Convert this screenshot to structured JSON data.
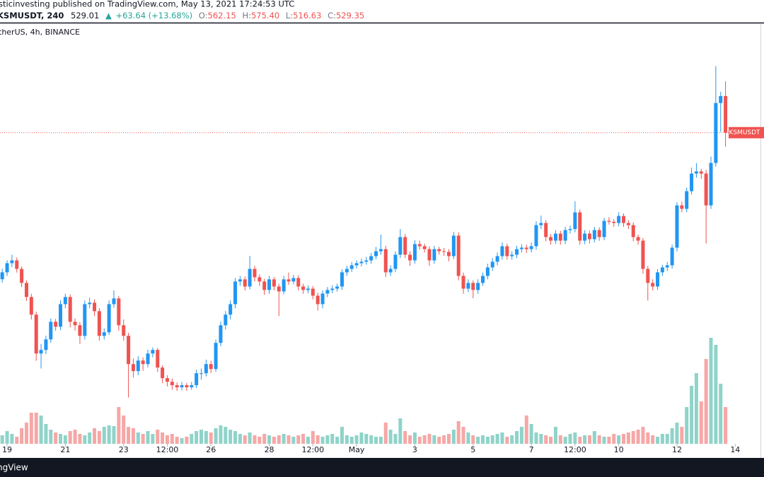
{
  "header": {
    "author_line": "sticinvesting published on TradingView.com, May 13, 2021 17:24:53 UTC",
    "symbol": "KSMUSDT, 240",
    "last": "529.01",
    "change": "+63.64 (+13.68%)",
    "ohlc": [
      {
        "label": "O:",
        "value": "562.15"
      },
      {
        "label": "H:",
        "value": "575.40"
      },
      {
        "label": "L:",
        "value": "516.63"
      },
      {
        "label": "C:",
        "value": "529.35"
      }
    ]
  },
  "chart_data": {
    "type": "candlestick",
    "legend": "therUS, 4h, BINANCE",
    "last_price_label": "KSMUSDT",
    "up_color": "#2196f3",
    "down_color": "#ef5350",
    "volume_up_color": "#8fd3c9",
    "volume_down_color": "#f5a7a6",
    "ylim": [
      250.6,
      627.3
    ],
    "xlim": [
      -1.46,
      155.2
    ],
    "xticks": [
      {
        "value": 0,
        "label": "19"
      },
      {
        "value": 12,
        "label": "21"
      },
      {
        "value": 24,
        "label": "23"
      },
      {
        "value": 33,
        "label": "12:00"
      },
      {
        "value": 42,
        "label": "26"
      },
      {
        "value": 54,
        "label": "28"
      },
      {
        "value": 63,
        "label": "12:00"
      },
      {
        "value": 72,
        "label": "May"
      },
      {
        "value": 84,
        "label": "3"
      },
      {
        "value": 96,
        "label": "5"
      },
      {
        "value": 108,
        "label": "7"
      },
      {
        "value": 117,
        "label": "12:00"
      },
      {
        "value": 126,
        "label": "10"
      },
      {
        "value": 138,
        "label": "12"
      },
      {
        "value": 150,
        "label": "14"
      }
    ],
    "x": [
      -1,
      0,
      1,
      2,
      3,
      4,
      5,
      6,
      7,
      8,
      9,
      10,
      11,
      12,
      13,
      14,
      15,
      16,
      17,
      18,
      19,
      20,
      21,
      22,
      23,
      24,
      25,
      26,
      27,
      28,
      29,
      30,
      31,
      32,
      33,
      34,
      35,
      36,
      37,
      38,
      39,
      40,
      41,
      42,
      43,
      44,
      45,
      46,
      47,
      48,
      49,
      50,
      51,
      52,
      53,
      54,
      55,
      56,
      57,
      58,
      59,
      60,
      61,
      62,
      63,
      64,
      65,
      66,
      67,
      68,
      69,
      70,
      71,
      72,
      73,
      74,
      75,
      76,
      77,
      78,
      79,
      80,
      81,
      82,
      83,
      84,
      85,
      86,
      87,
      88,
      89,
      90,
      91,
      92,
      93,
      94,
      95,
      96,
      97,
      98,
      99,
      100,
      101,
      102,
      103,
      104,
      105,
      106,
      107,
      108,
      109,
      110,
      111,
      112,
      113,
      114,
      115,
      116,
      117,
      118,
      119,
      120,
      121,
      122,
      123,
      124,
      125,
      126,
      127,
      128,
      129,
      130,
      131,
      132,
      133,
      134,
      135,
      136,
      137,
      138,
      139,
      140,
      141,
      142,
      143,
      144,
      145,
      146,
      147,
      148
    ],
    "open": [
      398.0,
      404.2,
      412.4,
      414.9,
      407.3,
      394.7,
      382.1,
      366.3,
      331.5,
      334.7,
      344.1,
      359.9,
      355.5,
      375.7,
      382.1,
      359.9,
      356.8,
      347.3,
      375.7,
      377.0,
      369.4,
      347.3,
      350.5,
      375.7,
      380.8,
      356.8,
      347.3,
      322.0,
      315.7,
      325.2,
      322.0,
      331.5,
      334.7,
      318.9,
      309.4,
      306.2,
      303.1,
      301.2,
      303.1,
      301.2,
      303.1,
      313.8,
      313.8,
      322.0,
      317.6,
      341.0,
      356.8,
      366.3,
      375.7,
      396.0,
      397.9,
      391.5,
      407.3,
      399.8,
      396.0,
      388.4,
      397.9,
      391.5,
      387.1,
      397.9,
      396.0,
      399.1,
      391.5,
      388.4,
      389.6,
      383.3,
      375.7,
      385.2,
      388.4,
      389.6,
      391.5,
      404.2,
      407.3,
      410.5,
      412.4,
      413.7,
      414.9,
      418.7,
      423.1,
      425.0,
      404.2,
      407.3,
      420.0,
      435.8,
      420.0,
      414.9,
      429.5,
      427.6,
      425.0,
      414.9,
      425.0,
      423.1,
      422.5,
      418.7,
      437.1,
      401.0,
      389.6,
      394.7,
      388.4,
      394.7,
      401.0,
      408.6,
      413.7,
      418.7,
      427.6,
      418.7,
      420.0,
      425.0,
      426.3,
      425.0,
      427.6,
      446.5,
      448.4,
      435.8,
      432.6,
      438.9,
      432.6,
      442.1,
      443.0,
      457.9,
      432.6,
      438.9,
      433.9,
      442.1,
      435.8,
      450.3,
      449.5,
      448.4,
      454.7,
      448.4,
      446.5,
      435.8,
      432.6,
      407.3,
      394.7,
      391.5,
      404.2,
      408.6,
      410.5,
      426.3,
      464.2,
      461.1,
      476.9,
      492.7,
      494.6,
      492.7,
      464.2,
      502.2,
      555.9,
      562.15
    ],
    "high": [
      407.5,
      415.0,
      420.0,
      417.5,
      409.5,
      397.0,
      385.0,
      369.0,
      340.0,
      347.5,
      363.0,
      362.5,
      379.0,
      385.0,
      384.5,
      363.0,
      359.5,
      379.0,
      381.5,
      380.0,
      372.0,
      354.0,
      379.0,
      388.0,
      383.0,
      362.0,
      350.0,
      327.0,
      329.0,
      328.0,
      335.0,
      337.0,
      336.5,
      321.0,
      312.0,
      309.0,
      305.5,
      306.0,
      305.0,
      306.0,
      317.0,
      318.0,
      326.0,
      325.0,
      344.0,
      360.0,
      369.5,
      379.0,
      399.0,
      401.0,
      400.5,
      419.0,
      410.0,
      402.5,
      398.5,
      401.0,
      400.0,
      394.0,
      401.0,
      404.0,
      402.0,
      401.5,
      394.0,
      392.5,
      392.0,
      386.0,
      388.0,
      391.0,
      392.5,
      394.0,
      407.0,
      410.0,
      413.5,
      415.0,
      416.5,
      418.0,
      421.5,
      427.0,
      438.0,
      428.0,
      410.5,
      423.0,
      443.0,
      438.5,
      423.0,
      433.0,
      432.5,
      430.0,
      427.5,
      428.0,
      427.0,
      426.0,
      425.0,
      440.5,
      440.0,
      404.0,
      398.0,
      397.0,
      398.0,
      404.0,
      412.0,
      417.0,
      422.0,
      431.0,
      430.0,
      423.0,
      428.0,
      429.5,
      429.0,
      431.0,
      450.0,
      455.0,
      451.0,
      438.5,
      442.0,
      441.5,
      445.0,
      446.0,
      468.0,
      460.5,
      442.0,
      441.5,
      445.0,
      444.5,
      453.0,
      453.5,
      452.0,
      458.0,
      457.0,
      451.0,
      449.0,
      438.0,
      435.0,
      410.0,
      398.0,
      407.0,
      411.0,
      413.5,
      429.0,
      467.0,
      467.5,
      480.0,
      498.0,
      502.0,
      497.0,
      496.0,
      508.0,
      589.0,
      566.0,
      575.4
    ],
    "low": [
      395.0,
      401.0,
      409.0,
      404.0,
      391.0,
      378.5,
      362.0,
      325.0,
      318.0,
      331.0,
      341.0,
      352.0,
      352.5,
      372.0,
      355.0,
      352.0,
      340.0,
      344.0,
      372.0,
      365.0,
      343.0,
      344.0,
      348.0,
      372.5,
      352.0,
      343.0,
      292.0,
      310.0,
      312.0,
      316.0,
      319.0,
      328.0,
      315.0,
      305.0,
      302.0,
      299.0,
      298.0,
      298.5,
      298.0,
      299.0,
      300.5,
      308.0,
      311.0,
      314.0,
      315.0,
      338.0,
      353.0,
      362.0,
      372.0,
      392.0,
      388.0,
      389.0,
      396.0,
      392.0,
      384.0,
      385.0,
      388.0,
      365.0,
      384.5,
      393.0,
      393.5,
      388.0,
      385.0,
      385.5,
      380.0,
      370.0,
      372.0,
      382.0,
      385.5,
      387.0,
      388.5,
      401.0,
      404.5,
      407.5,
      409.5,
      411.0,
      412.0,
      416.0,
      420.0,
      400.0,
      401.0,
      404.5,
      417.0,
      417.0,
      410.0,
      412.0,
      424.5,
      422.0,
      410.0,
      412.0,
      420.0,
      419.0,
      414.0,
      416.0,
      397.0,
      385.0,
      386.5,
      381.0,
      385.0,
      392.0,
      398.0,
      405.5,
      410.5,
      415.5,
      415.5,
      415.5,
      417.0,
      422.0,
      421.5,
      422.0,
      424.5,
      443.0,
      432.0,
      429.0,
      429.5,
      429.0,
      429.5,
      439.0,
      440.0,
      429.0,
      429.5,
      430.0,
      431.0,
      432.5,
      433.0,
      447.0,
      445.0,
      445.5,
      445.0,
      443.0,
      432.0,
      429.0,
      403.0,
      379.0,
      388.0,
      388.5,
      401.0,
      405.5,
      407.5,
      423.0,
      458.0,
      458.0,
      474.0,
      489.0,
      488.0,
      430.0,
      461.0,
      499.0,
      530.0,
      516.63
    ],
    "close": [
      404.2,
      412.4,
      414.9,
      407.3,
      394.7,
      382.1,
      366.3,
      331.5,
      334.7,
      344.1,
      359.9,
      355.5,
      375.7,
      382.1,
      359.9,
      356.8,
      347.3,
      375.7,
      377.0,
      369.4,
      347.3,
      350.5,
      375.7,
      380.8,
      356.8,
      347.3,
      322.0,
      315.7,
      325.2,
      322.0,
      331.5,
      334.7,
      318.9,
      309.4,
      306.2,
      303.1,
      301.2,
      303.1,
      301.2,
      303.1,
      313.8,
      313.8,
      322.0,
      317.6,
      341.0,
      356.8,
      366.3,
      375.7,
      396.0,
      397.9,
      391.5,
      407.3,
      399.8,
      396.0,
      388.4,
      397.9,
      391.5,
      387.1,
      397.9,
      396.0,
      399.1,
      391.5,
      388.4,
      389.6,
      383.3,
      375.7,
      385.2,
      388.4,
      389.6,
      391.5,
      404.2,
      407.3,
      410.5,
      412.4,
      413.7,
      414.9,
      418.7,
      423.1,
      425.0,
      404.2,
      407.3,
      420.0,
      435.8,
      420.0,
      414.9,
      429.5,
      427.6,
      425.0,
      414.9,
      425.0,
      423.1,
      422.5,
      418.7,
      437.1,
      401.0,
      389.6,
      394.7,
      388.4,
      394.7,
      401.0,
      408.6,
      413.7,
      418.7,
      427.6,
      418.7,
      420.0,
      425.0,
      426.3,
      425.0,
      427.6,
      446.5,
      448.4,
      435.8,
      432.6,
      438.9,
      432.6,
      442.1,
      443.0,
      457.9,
      432.6,
      438.9,
      433.9,
      442.1,
      435.8,
      450.3,
      449.5,
      448.4,
      454.7,
      448.4,
      446.5,
      435.8,
      432.6,
      407.3,
      394.7,
      391.5,
      404.2,
      408.6,
      410.5,
      426.3,
      464.2,
      461.1,
      476.9,
      492.7,
      494.6,
      492.7,
      464.2,
      502.2,
      555.9,
      562.15,
      529.35
    ],
    "volume": [
      12,
      18,
      14,
      10,
      22,
      30,
      44,
      44,
      40,
      28,
      20,
      16,
      14,
      12,
      18,
      20,
      14,
      12,
      16,
      22,
      18,
      24,
      26,
      25,
      52,
      40,
      24,
      22,
      16,
      14,
      18,
      14,
      20,
      16,
      12,
      14,
      10,
      8,
      10,
      14,
      18,
      20,
      18,
      16,
      22,
      26,
      24,
      20,
      18,
      14,
      12,
      16,
      12,
      10,
      14,
      12,
      10,
      12,
      14,
      12,
      10,
      12,
      14,
      10,
      18,
      12,
      10,
      12,
      14,
      10,
      24,
      12,
      10,
      12,
      16,
      14,
      12,
      10,
      10,
      30,
      20,
      14,
      36,
      18,
      12,
      16,
      10,
      12,
      14,
      12,
      10,
      12,
      14,
      20,
      32,
      24,
      16,
      12,
      10,
      12,
      10,
      12,
      14,
      16,
      10,
      12,
      18,
      24,
      40,
      28,
      16,
      14,
      12,
      10,
      24,
      12,
      10,
      14,
      16,
      10,
      12,
      12,
      18,
      12,
      10,
      10,
      14,
      12,
      14,
      16,
      18,
      20,
      24,
      16,
      12,
      10,
      14,
      14,
      22,
      30,
      24,
      52,
      82,
      100,
      60,
      120,
      150,
      140,
      85,
      52
    ]
  },
  "footer": {
    "brand": "ngView"
  }
}
